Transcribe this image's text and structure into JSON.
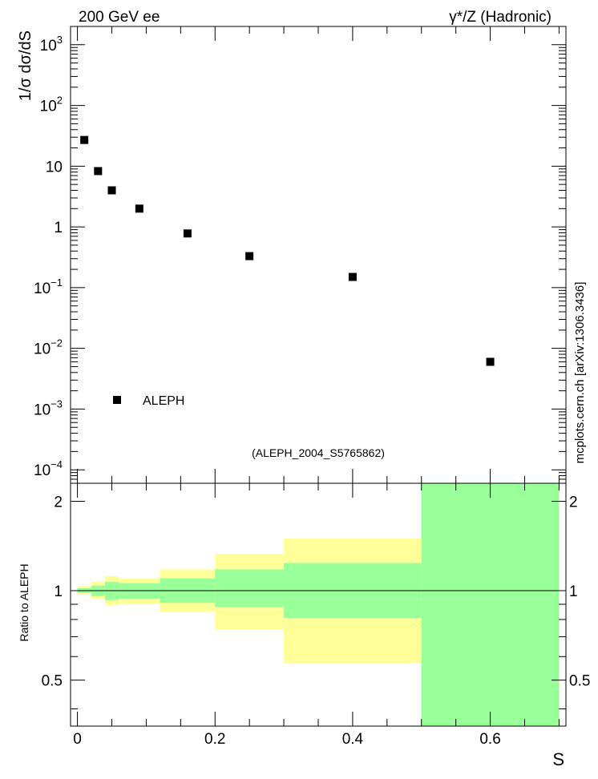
{
  "header": {
    "left_label": "200 GeV ee",
    "right_label": "γ*/Z (Hadronic)"
  },
  "side_label": "mcplots.cern.ch [arXiv:1306.3436]",
  "analysis_label": "(ALEPH_2004_S5765862)",
  "colors": {
    "band_outer": "#ffff99",
    "band_inner": "#99ff99",
    "marker": "#000000",
    "analysis_label": "#8c8c8c",
    "side_label": "#7f7f7f"
  },
  "chart_data": [
    {
      "type": "scatter",
      "ylabel": "1/σ  dσ/dS",
      "y_scale": "log",
      "xlim": [
        -0.01,
        0.71
      ],
      "ylim": [
        6e-05,
        2000
      ],
      "ytick_labels": [
        {
          "value": 1000,
          "base": "10",
          "exp": "3"
        },
        {
          "value": 100,
          "base": "10",
          "exp": "2"
        },
        {
          "value": 10,
          "base": "10",
          "exp": ""
        },
        {
          "value": 1,
          "base": "1",
          "exp": ""
        },
        {
          "value": 0.1,
          "base": "10",
          "exp": "−1"
        },
        {
          "value": 0.01,
          "base": "10",
          "exp": "−2"
        },
        {
          "value": 0.001,
          "base": "10",
          "exp": "−3"
        },
        {
          "value": 0.0001,
          "base": "10",
          "exp": "−4"
        }
      ],
      "legend": {
        "entries": [
          "ALEPH"
        ],
        "position": "bottom-left"
      },
      "series": [
        {
          "name": "ALEPH",
          "x": [
            0.01,
            0.03,
            0.05,
            0.09,
            0.16,
            0.25,
            0.4,
            0.6
          ],
          "y": [
            27,
            8.3,
            4.0,
            2.0,
            0.78,
            0.33,
            0.15,
            0.006
          ]
        }
      ]
    },
    {
      "type": "area",
      "ylabel": "Ratio to ALEPH",
      "xlabel": "S",
      "xlim": [
        -0.01,
        0.71
      ],
      "ylim": [
        0.35,
        2.3
      ],
      "xtick_labels": [
        "0",
        "0.2",
        "0.4",
        "0.6"
      ],
      "xtick_values": [
        0,
        0.2,
        0.4,
        0.6
      ],
      "ytick_labels": [
        "0.5",
        "1",
        "2"
      ],
      "ytick_values": [
        0.5,
        1,
        2
      ],
      "reference_line": 1,
      "bins": [
        {
          "x_low": 0.0,
          "x_high": 0.02,
          "outer": [
            0.97,
            1.04
          ],
          "inner": [
            0.985,
            1.02
          ]
        },
        {
          "x_low": 0.02,
          "x_high": 0.04,
          "outer": [
            0.94,
            1.07
          ],
          "inner": [
            0.96,
            1.04
          ]
        },
        {
          "x_low": 0.04,
          "x_high": 0.06,
          "outer": [
            0.89,
            1.12
          ],
          "inner": [
            0.93,
            1.07
          ]
        },
        {
          "x_low": 0.06,
          "x_high": 0.12,
          "outer": [
            0.9,
            1.1
          ],
          "inner": [
            0.94,
            1.06
          ]
        },
        {
          "x_low": 0.12,
          "x_high": 0.2,
          "outer": [
            0.85,
            1.18
          ],
          "inner": [
            0.91,
            1.1
          ]
        },
        {
          "x_low": 0.2,
          "x_high": 0.3,
          "outer": [
            0.74,
            1.33
          ],
          "inner": [
            0.88,
            1.18
          ]
        },
        {
          "x_low": 0.3,
          "x_high": 0.5,
          "outer": [
            0.57,
            1.5
          ],
          "inner": [
            0.81,
            1.24
          ]
        },
        {
          "x_low": 0.5,
          "x_high": 0.7,
          "outer": [
            0.35,
            2.3
          ],
          "inner": [
            0.35,
            2.3
          ]
        }
      ]
    }
  ]
}
